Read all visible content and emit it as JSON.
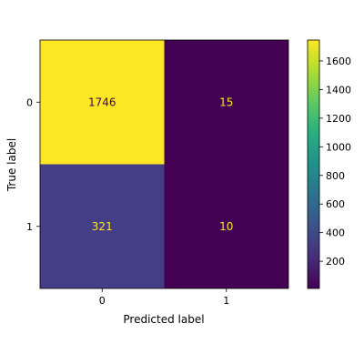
{
  "chart_data": {
    "type": "heatmap",
    "title": "",
    "xlabel": "Predicted label",
    "ylabel": "True label",
    "x_categories": [
      "0",
      "1"
    ],
    "y_categories": [
      "0",
      "1"
    ],
    "values": [
      [
        1746,
        15
      ],
      [
        321,
        10
      ]
    ],
    "colormap": "viridis",
    "colorbar": {
      "ticks": [
        "200",
        "400",
        "600",
        "800",
        "1000",
        "1200",
        "1400",
        "1600"
      ],
      "range": [
        10,
        1746
      ]
    },
    "colors": {
      "cell_0_0": "#fde725",
      "cell_0_1": "#440154",
      "cell_1_0": "#433e85",
      "cell_1_1": "#440154",
      "text_on_dark": "#fde725",
      "text_on_light": "#440154"
    }
  }
}
